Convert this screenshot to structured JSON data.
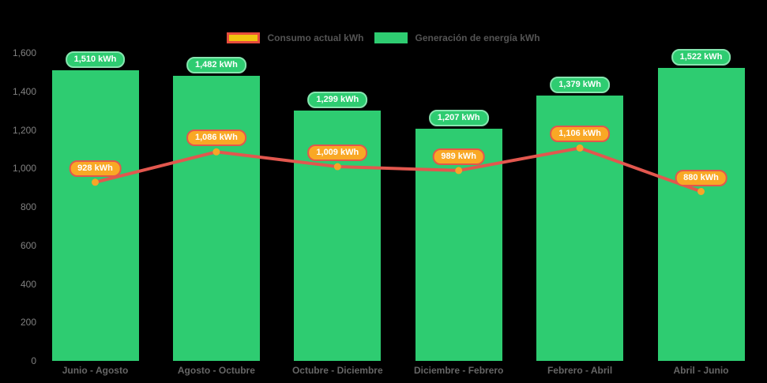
{
  "chart_data": {
    "type": "bar",
    "title": "",
    "xlabel": "",
    "ylabel": "",
    "background": "#000000",
    "grid": false,
    "categories": [
      "Junio - Agosto",
      "Agosto - Octubre",
      "Octubre - Diciembre",
      "Diciembre - Febrero",
      "Febrero - Abril",
      "Abril - Junio"
    ],
    "series": [
      {
        "name": "Generación de energía kWh",
        "type": "bar",
        "values": [
          1510,
          1482,
          1299,
          1207,
          1379,
          1522
        ],
        "labels": [
          "1,510 kWh",
          "1,482 kWh",
          "1,299 kWh",
          "1,207 kWh",
          "1,379 kWh",
          "1,522 kWh"
        ],
        "color": "#2ECC71",
        "badge_fill": "#2ECC71",
        "badge_border": "#86E5AF",
        "badge_text_color": "#FFFFFF"
      },
      {
        "name": "Consumo actual kWh",
        "type": "line",
        "values": [
          928,
          1086,
          1009,
          989,
          1106,
          880
        ],
        "labels": [
          "928 kWh",
          "1,086 kWh",
          "1,009 kWh",
          "989 kWh",
          "1,106 kWh",
          "880 kWh"
        ],
        "color": "#E2574E",
        "marker_color": "#F7A528",
        "badge_fill": "#F9A825",
        "badge_border": "#E2574C",
        "badge_text_color": "#FFFFFF"
      }
    ],
    "y_axis": {
      "min": 0,
      "max": 1600,
      "step": 200,
      "tick_labels": [
        "0",
        "200",
        "400",
        "600",
        "800",
        "1,000",
        "1,200",
        "1,400",
        "1,600"
      ]
    },
    "legend": {
      "position": "top",
      "items": [
        {
          "label": "Consumo actual kWh",
          "swatch_fill": "#F1C40F",
          "swatch_border": "#E74C3C"
        },
        {
          "label": "Generación de energía kWh",
          "swatch_fill": "#2ECC71",
          "swatch_border": "#2ECC71"
        }
      ]
    }
  },
  "colors": {
    "axis_text": "#808080",
    "category_text": "#666666",
    "legend_text": "#545454"
  }
}
